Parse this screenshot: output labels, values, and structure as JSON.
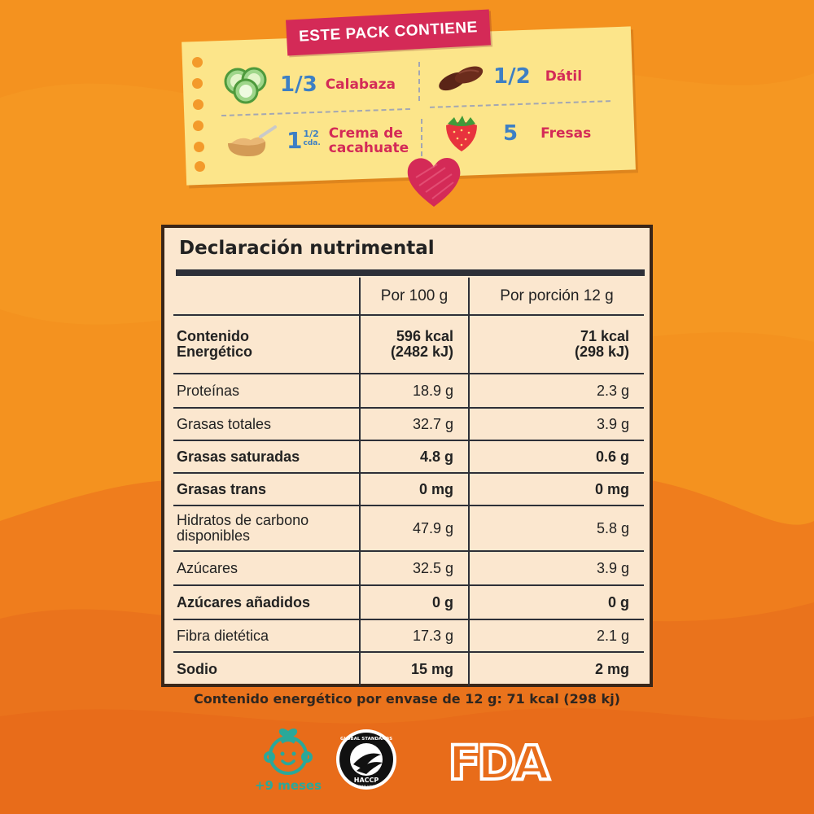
{
  "pack": {
    "banner": "ESTE PACK CONTIENE",
    "items": [
      {
        "qty": "1/3",
        "name": "Calabaza",
        "icon": "cucumber-slices-icon"
      },
      {
        "qty": "1/2",
        "name": "Dátil",
        "icon": "date-fruit-icon"
      },
      {
        "qty_whole": "1",
        "qty_frac": "1/2",
        "qty_unit": "cda.",
        "name_line1": "Crema de",
        "name_line2": "cacahuate",
        "icon": "peanut-butter-spoon-icon"
      },
      {
        "qty": "5",
        "name": "Fresas",
        "icon": "strawberry-icon"
      }
    ]
  },
  "nutrition": {
    "title": "Declaración nutrimental",
    "col_per100": "Por 100 g",
    "col_portion": "Por porción 12 g",
    "rows": [
      {
        "label_line1": "Contenido",
        "label_line2": "Energético",
        "per100_line1": "596 kcal",
        "per100_line2": "(2482 kJ)",
        "portion_line1": "71 kcal",
        "portion_line2": "(298 kJ)",
        "bold": true
      },
      {
        "label": "Proteínas",
        "per100": "18.9 g",
        "portion": "2.3 g",
        "bold": false
      },
      {
        "label": "Grasas totales",
        "per100": "32.7 g",
        "portion": "3.9 g",
        "bold": false
      },
      {
        "label": "Grasas saturadas",
        "per100": "4.8 g",
        "portion": "0.6 g",
        "bold": true
      },
      {
        "label": "Grasas trans",
        "per100": "0 mg",
        "portion": "0 mg",
        "bold": true
      },
      {
        "label_line1": "Hidratos de carbono",
        "label_line2": "disponibles",
        "per100": "47.9 g",
        "portion": "5.8 g",
        "bold": false
      },
      {
        "label": "Azúcares",
        "per100": "32.5 g",
        "portion": "3.9 g",
        "bold": false
      },
      {
        "label": "Azúcares añadidos",
        "per100": "0 g",
        "portion": "0 g",
        "bold": true
      },
      {
        "label": "Fibra dietética",
        "per100": "17.3 g",
        "portion": "2.1 g",
        "bold": false
      },
      {
        "label": "Sodio",
        "per100": "15 mg",
        "portion": "2 mg",
        "bold": true
      }
    ],
    "footnote": "Contenido energético por envase de 12 g: 71 kcal (298 kj)"
  },
  "badges": {
    "age_label": "+9 meses",
    "haccp_top": "GLOBAL STANDARDS",
    "haccp_mid": "HACCP",
    "haccp_bottom": "COMPLIANCE",
    "fda": "FDA"
  },
  "colors": {
    "background": "#f3901e",
    "note": "#fce58a",
    "banner": "#d42a57",
    "quantity": "#3d7fc4",
    "ingredient": "#d42a57",
    "panel": "#fbe7cf",
    "badge_teal": "#2aa89a"
  }
}
